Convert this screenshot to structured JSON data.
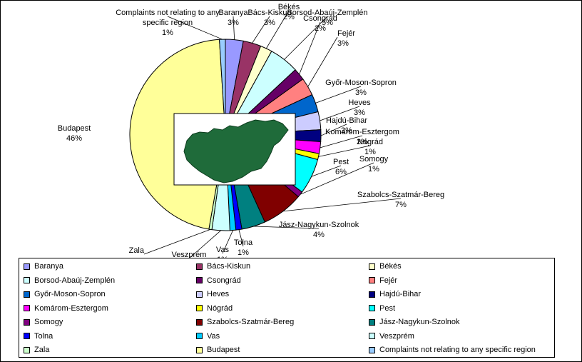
{
  "chart_data": {
    "type": "pie",
    "categories": [
      "Baranya",
      "Bács-Kiskun",
      "Békés",
      "Borsod-Abaúj-Zemplén",
      "Csongrád",
      "Fejér",
      "Győr-Moson-Sopron",
      "Heves",
      "Hajdú-Bihar",
      "Komárom-Esztergom",
      "Nógrád",
      "Pest",
      "Somogy",
      "Szabolcs-Szatmár-Bereg",
      "Jász-Nagykun-Szolnok",
      "Tolna",
      "Vas",
      "Veszprém",
      "Zala",
      "Budapest",
      "Complaints not relating to any specific region"
    ],
    "values": [
      3,
      3,
      2,
      5,
      2,
      3,
      3,
      3,
      2,
      2,
      1,
      6,
      1,
      7,
      4,
      1,
      1,
      3,
      0.5,
      46,
      1
    ],
    "slice_labels": [
      [
        "Baranya",
        "3%"
      ],
      [
        "Bács-Kiskun",
        "3%"
      ],
      [
        "Békés",
        "2%"
      ],
      [
        "Borsod-Abaúj-Zemplén",
        "5%"
      ],
      [
        "Csongrád",
        "2%"
      ],
      [
        "Fejér",
        "3%"
      ],
      [
        "Győr-Moson-Sopron",
        "3%"
      ],
      [
        "Heves",
        "3%"
      ],
      [
        "Hajdú-Bihar",
        "2%"
      ],
      [
        "Komárom-Esztergom",
        "2%"
      ],
      [
        "Nógrád",
        "1%"
      ],
      [
        "Pest",
        "6%"
      ],
      [
        "Somogy",
        "1%"
      ],
      [
        "Szabolcs-Szatmár-Bereg",
        "7%"
      ],
      [
        "Jász-Nagykun-Szolnok",
        "4%"
      ],
      [
        "Tolna",
        "1%"
      ],
      [
        "Vas",
        "1%"
      ],
      [
        "Veszprém",
        ""
      ],
      [
        "Zala",
        ""
      ],
      [
        "Budapest",
        "46%"
      ],
      [
        "Complaints not relating to any",
        "specific region",
        "1%"
      ]
    ],
    "colors": [
      "#9999ff",
      "#993366",
      "#ffffcc",
      "#ccffff",
      "#660066",
      "#ff8080",
      "#0066cc",
      "#ccccff",
      "#000080",
      "#ff00ff",
      "#ffff00",
      "#00ffff",
      "#800080",
      "#800000",
      "#008080",
      "#0000ff",
      "#00ccff",
      "#ccffff",
      "#ccffcc",
      "#ffff99",
      "#99ccff"
    ],
    "legend_position": "bottom",
    "legend_order": [
      "Baranya",
      "Bács-Kiskun",
      "Békés",
      "Borsod-Abaúj-Zemplén",
      "Csongrád",
      "Fejér",
      "Győr-Moson-Sopron",
      "Heves",
      "Hajdú-Bihar",
      "Komárom-Esztergom",
      "Nógrád",
      "Pest",
      "Somogy",
      "Szabolcs-Szatmár-Bereg",
      "Jász-Nagykun-Szolnok",
      "Tolna",
      "Vas",
      "Veszprém",
      "Zala",
      "Budapest",
      "Complaints not relating to any specific region"
    ],
    "inset_image": "map of Hungary"
  }
}
